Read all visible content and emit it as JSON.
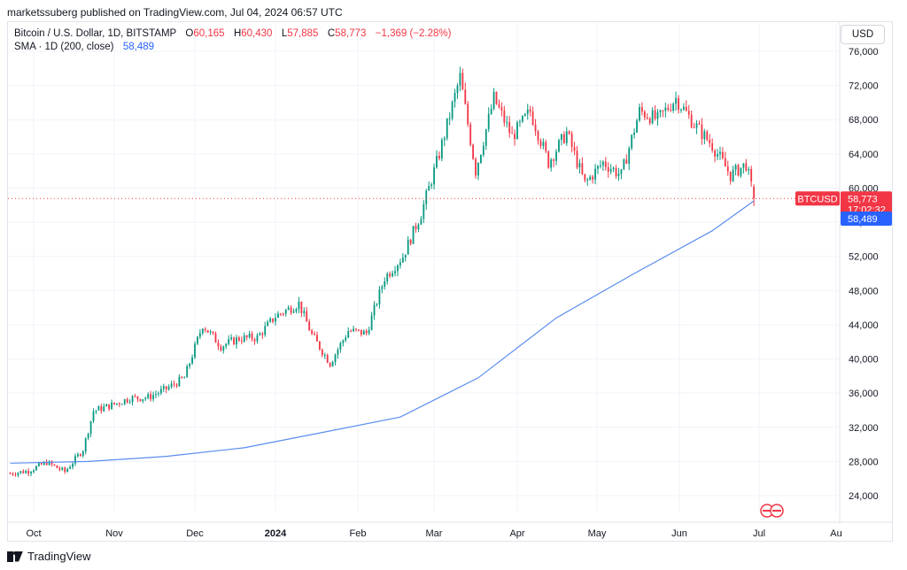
{
  "header": {
    "publisher_note": "marketssuberg published on TradingView.com, Jul 04, 2024 06:57 UTC"
  },
  "legend": {
    "symbol": "Bitcoin / U.S. Dollar, 1D, BITSTAMP",
    "o_label": "O",
    "o_value": "60,165",
    "h_label": "H",
    "h_value": "60,430",
    "l_label": "L",
    "l_value": "57,885",
    "c_label": "C",
    "c_value": "58,773",
    "change": "−1,369 (−2.28%)",
    "sma_label": "SMA · 1D (200, close)",
    "sma_value": "58,489"
  },
  "currency_button": "USD",
  "price_tags": {
    "symbol": "BTCUSD",
    "last_price": "58,773",
    "countdown": "17:02:32",
    "sma_value": "58,489"
  },
  "footer": {
    "brand": "TradingView"
  },
  "colors": {
    "up": "#089981",
    "down": "#f23645",
    "sma": "#5b8def",
    "sma_tag": "#2962ff",
    "grid": "#f0f3fa"
  },
  "chart_data": {
    "type": "candlestick",
    "title": "Bitcoin / U.S. Dollar, 1D, BITSTAMP",
    "ylim": [
      20000,
      78000
    ],
    "y_ticks": [
      "76,000",
      "72,000",
      "68,000",
      "64,000",
      "60,000",
      "56,000",
      "52,000",
      "48,000",
      "44,000",
      "40,000",
      "36,000",
      "32,000",
      "28,000",
      "24,000"
    ],
    "x_ticks": [
      "Oct",
      "Nov",
      "Dec",
      "2024",
      "Feb",
      "Mar",
      "Apr",
      "May",
      "Jun",
      "Jul",
      "Au"
    ],
    "close_series": [
      {
        "date": "2023-09-22",
        "close": 26600
      },
      {
        "date": "2023-09-29",
        "close": 26900
      },
      {
        "date": "2023-10-06",
        "close": 27900
      },
      {
        "date": "2023-10-13",
        "close": 26800
      },
      {
        "date": "2023-10-20",
        "close": 29400
      },
      {
        "date": "2023-10-24",
        "close": 33900
      },
      {
        "date": "2023-10-31",
        "close": 34600
      },
      {
        "date": "2023-11-07",
        "close": 35400
      },
      {
        "date": "2023-11-14",
        "close": 35500
      },
      {
        "date": "2023-11-21",
        "close": 36500
      },
      {
        "date": "2023-11-28",
        "close": 37800
      },
      {
        "date": "2023-12-05",
        "close": 44000
      },
      {
        "date": "2023-12-12",
        "close": 41500
      },
      {
        "date": "2023-12-19",
        "close": 42400
      },
      {
        "date": "2023-12-26",
        "close": 42500
      },
      {
        "date": "2024-01-02",
        "close": 45000
      },
      {
        "date": "2024-01-11",
        "close": 46500
      },
      {
        "date": "2024-01-16",
        "close": 42800
      },
      {
        "date": "2024-01-23",
        "close": 39500
      },
      {
        "date": "2024-01-30",
        "close": 43300
      },
      {
        "date": "2024-02-06",
        "close": 43000
      },
      {
        "date": "2024-02-13",
        "close": 49500
      },
      {
        "date": "2024-02-20",
        "close": 52000
      },
      {
        "date": "2024-02-27",
        "close": 57000
      },
      {
        "date": "2024-03-05",
        "close": 64000
      },
      {
        "date": "2024-03-13",
        "close": 73000
      },
      {
        "date": "2024-03-19",
        "close": 62000
      },
      {
        "date": "2024-03-26",
        "close": 70500
      },
      {
        "date": "2024-04-02",
        "close": 66000
      },
      {
        "date": "2024-04-09",
        "close": 69000
      },
      {
        "date": "2024-04-16",
        "close": 63000
      },
      {
        "date": "2024-04-23",
        "close": 66500
      },
      {
        "date": "2024-04-30",
        "close": 60500
      },
      {
        "date": "2024-05-07",
        "close": 63000
      },
      {
        "date": "2024-05-14",
        "close": 61500
      },
      {
        "date": "2024-05-21",
        "close": 69000
      },
      {
        "date": "2024-05-28",
        "close": 68000
      },
      {
        "date": "2024-06-04",
        "close": 70500
      },
      {
        "date": "2024-06-11",
        "close": 67500
      },
      {
        "date": "2024-06-18",
        "close": 65000
      },
      {
        "date": "2024-06-25",
        "close": 61500
      },
      {
        "date": "2024-07-01",
        "close": 62800
      },
      {
        "date": "2024-07-04",
        "close": 58773
      }
    ],
    "sma_series": [
      {
        "date": "2023-09-22",
        "value": 27800
      },
      {
        "date": "2023-10-22",
        "value": 28000
      },
      {
        "date": "2023-11-21",
        "value": 28600
      },
      {
        "date": "2023-12-21",
        "value": 29600
      },
      {
        "date": "2024-01-20",
        "value": 31400
      },
      {
        "date": "2024-02-19",
        "value": 33200
      },
      {
        "date": "2024-03-20",
        "value": 37800
      },
      {
        "date": "2024-04-19",
        "value": 44800
      },
      {
        "date": "2024-05-19",
        "value": 50000
      },
      {
        "date": "2024-06-18",
        "value": 55000
      },
      {
        "date": "2024-07-04",
        "value": 58489
      }
    ],
    "last_candle": {
      "open": 60165,
      "high": 60430,
      "low": 57885,
      "close": 58773
    }
  }
}
